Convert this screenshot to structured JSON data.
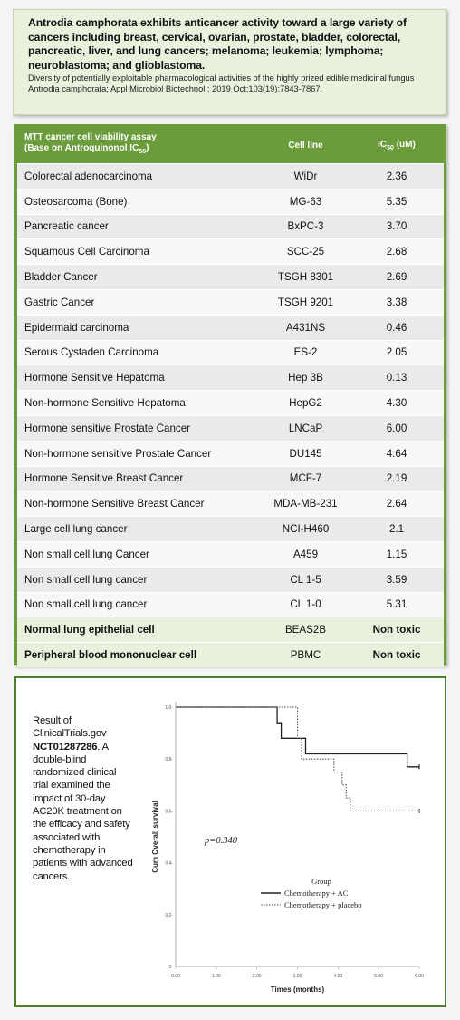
{
  "intro": {
    "title": "Antrodia camphorata  exhibits anticancer activity toward a large variety of cancers including breast, cervical, ovarian, prostate, bladder, colorectal, pancreatic, liver, and lung cancers; melanoma; leukemia; lymphoma; neuroblastoma; and glioblastoma.",
    "citation": "Diversity of potentially exploitable pharmacological activities  of the highly prized edible medicinal fungus Antrodia camphorata; Appl Microbiol Biotechnol ; 2019 Oct;103(19):7843-7867."
  },
  "table": {
    "header_line1": "MTT cancer cell viability assay",
    "header_line2_prefix": "(Base on Antroquinonol IC",
    "header_line2_sub": "50",
    "header_line2_suffix": ")",
    "col_cell_line": "Cell line",
    "col_ic_prefix": "IC",
    "col_ic_sub": "50",
    "col_ic_suffix": "  (uM)",
    "rows": [
      {
        "condition": "Colorectal adenocarcinoma",
        "cell_line": "WiDr",
        "ic50": "2.36"
      },
      {
        "condition": "Osteosarcoma (Bone)",
        "cell_line": "MG-63",
        "ic50": "5.35"
      },
      {
        "condition": "Pancreatic  cancer",
        "cell_line": "BxPC-3",
        "ic50": "3.70"
      },
      {
        "condition": "Squamous Cell Carcinoma",
        "cell_line": "SCC-25",
        "ic50": "2.68"
      },
      {
        "condition": "Bladder Cancer",
        "cell_line": "TSGH 8301",
        "ic50": "2.69"
      },
      {
        "condition": "Gastric Cancer",
        "cell_line": "TSGH 9201",
        "ic50": "3.38"
      },
      {
        "condition": "Epidermaid carcinoma",
        "cell_line": "A431NS",
        "ic50": "0.46"
      },
      {
        "condition": "Serous Cystaden Carcinoma",
        "cell_line": "ES-2",
        "ic50": "2.05"
      },
      {
        "condition": "Hormone Sensitive Hepatoma",
        "cell_line": "Hep 3B",
        "ic50": "0.13"
      },
      {
        "condition": "Non-hormone Sensitive Hepatoma",
        "cell_line": "HepG2",
        "ic50": "4.30"
      },
      {
        "condition": "Hormone sensitive Prostate Cancer",
        "cell_line": "LNCaP",
        "ic50": "6.00"
      },
      {
        "condition": "Non-hormone sensitive Prostate Cancer",
        "cell_line": "DU145",
        "ic50": "4.64"
      },
      {
        "condition": "Hormone Sensitive Breast Cancer",
        "cell_line": "MCF-7",
        "ic50": "2.19"
      },
      {
        "condition": "Non-hormone Sensitive Breast Cancer",
        "cell_line": "MDA-MB-231",
        "ic50": "2.64"
      },
      {
        "condition": "Large cell lung cancer",
        "cell_line": "NCI-H460",
        "ic50": "2.1"
      },
      {
        "condition": "Non small cell lung Cancer",
        "cell_line": "A459",
        "ic50": "1.15"
      },
      {
        "condition": "Non small cell lung cancer",
        "cell_line": "CL 1-5",
        "ic50": "3.59"
      },
      {
        "condition": "Non small cell lung cancer",
        "cell_line": "CL 1-0",
        "ic50": "5.31"
      },
      {
        "condition": "Normal lung epithelial cell",
        "cell_line": "BEAS2B",
        "ic50": "Non toxic"
      },
      {
        "condition": "Peripheral blood mononuclear cell",
        "cell_line": "PBMC",
        "ic50": "Non toxic"
      }
    ]
  },
  "clinical": {
    "text_before": "Result of ClinicalTrials.gov ",
    "trial_id": "NCT01287286",
    "text_after": ". A double-blind randomized clinical trial examined the impact of 30-day AC20K treatment on the efficacy and safety associated with chemotherapy in patients with advanced cancers."
  },
  "chart_data": {
    "type": "line",
    "step": true,
    "xlabel": "Times (months)",
    "ylabel": "Cum Overall survival",
    "x_ticks": [
      "0.00",
      "1.00",
      "2.00",
      "3.00",
      "4.00",
      "5.00",
      "6.00"
    ],
    "y_ticks": [
      "0-",
      "0.2-",
      "0.4-",
      "0.6-",
      "0.8-",
      "1.0-"
    ],
    "xlim": [
      0,
      6
    ],
    "ylim": [
      0,
      1.0
    ],
    "annotation": "p=0.340",
    "legend_title": "Group",
    "legend_position": "center-right",
    "series": [
      {
        "name": "Chemotherapy + AC",
        "style": "solid",
        "color": "#222222",
        "x": [
          0,
          2.5,
          2.5,
          2.6,
          2.6,
          3.2,
          3.2,
          5.7,
          5.7,
          6.0
        ],
        "y": [
          1.0,
          1.0,
          0.94,
          0.94,
          0.88,
          0.88,
          0.82,
          0.82,
          0.77,
          0.77
        ]
      },
      {
        "name": "Chemotherapy + placebo",
        "style": "dotted",
        "color": "#555555",
        "x": [
          0,
          3.0,
          3.0,
          3.1,
          3.1,
          3.9,
          3.9,
          4.1,
          4.1,
          4.2,
          4.2,
          4.3,
          4.3,
          6.0
        ],
        "y": [
          1.0,
          1.0,
          0.88,
          0.88,
          0.8,
          0.8,
          0.75,
          0.75,
          0.7,
          0.7,
          0.65,
          0.65,
          0.6,
          0.6
        ]
      }
    ]
  }
}
